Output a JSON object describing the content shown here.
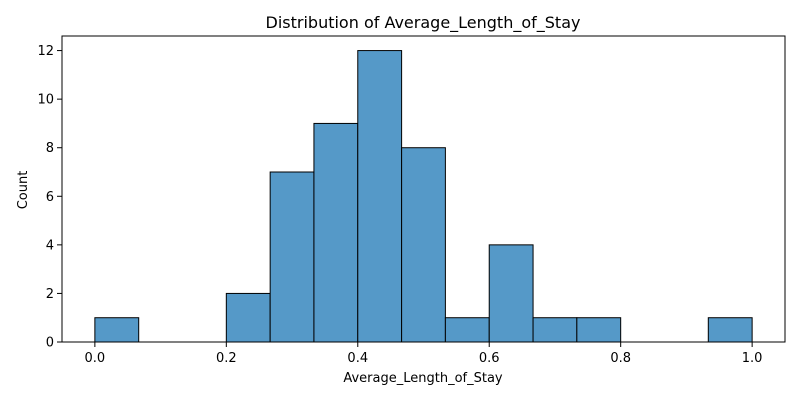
{
  "chart_data": {
    "type": "bar",
    "title": "Distribution of Average_Length_of_Stay",
    "xlabel": "Average_Length_of_Stay",
    "ylabel": "Count",
    "xlim": [
      -0.05,
      1.05
    ],
    "ylim": [
      0,
      12.6
    ],
    "bin_edges": [
      0.0,
      0.0667,
      0.1333,
      0.2,
      0.2667,
      0.3333,
      0.4,
      0.4667,
      0.5333,
      0.6,
      0.6667,
      0.7333,
      0.8,
      0.8667,
      0.9333,
      1.0
    ],
    "values": [
      1,
      0,
      0,
      2,
      7,
      9,
      12,
      8,
      1,
      4,
      1,
      1,
      0,
      0,
      1
    ],
    "x_ticks": [
      0.0,
      0.2,
      0.4,
      0.6,
      0.8,
      1.0
    ],
    "x_tick_labels": [
      "0.0",
      "0.2",
      "0.4",
      "0.6",
      "0.8",
      "1.0"
    ],
    "y_ticks": [
      0,
      2,
      4,
      6,
      8,
      10,
      12
    ],
    "y_tick_labels": [
      "0",
      "2",
      "4",
      "6",
      "8",
      "10",
      "12"
    ],
    "grid": false,
    "bar_color": "#5599c8",
    "edge_color": "#000000"
  }
}
